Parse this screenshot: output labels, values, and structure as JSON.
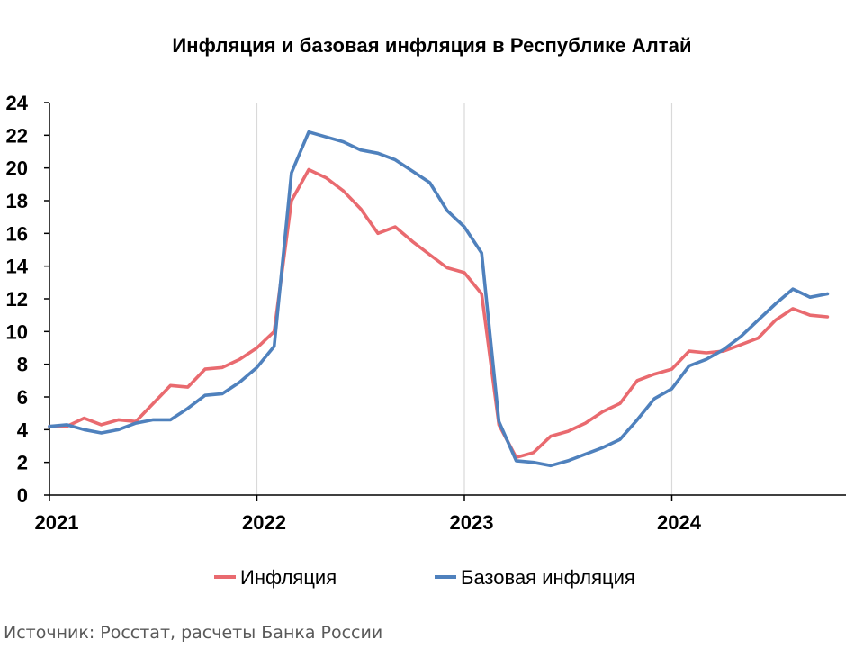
{
  "chart_data": {
    "type": "line",
    "title": "Инфляция и базовая инфляция в Республике Алтай",
    "xlabel": "",
    "ylabel": "",
    "ylim": [
      0,
      24
    ],
    "yticks": [
      0,
      2,
      4,
      6,
      8,
      10,
      12,
      14,
      16,
      18,
      20,
      22,
      24
    ],
    "xlim": [
      "2021-01",
      "2024-12"
    ],
    "x_tick_labels": [
      "2021",
      "2022",
      "2023",
      "2024"
    ],
    "grid": "vertical",
    "legend_position": "bottom",
    "x": [
      "2021-01",
      "2021-02",
      "2021-03",
      "2021-04",
      "2021-05",
      "2021-06",
      "2021-07",
      "2021-08",
      "2021-09",
      "2021-10",
      "2021-11",
      "2021-12",
      "2022-01",
      "2022-02",
      "2022-03",
      "2022-04",
      "2022-05",
      "2022-06",
      "2022-07",
      "2022-08",
      "2022-09",
      "2022-10",
      "2022-11",
      "2022-12",
      "2023-01",
      "2023-02",
      "2023-03",
      "2023-04",
      "2023-05",
      "2023-06",
      "2023-07",
      "2023-08",
      "2023-09",
      "2023-10",
      "2023-11",
      "2023-12",
      "2024-01",
      "2024-02",
      "2024-03",
      "2024-04",
      "2024-05",
      "2024-06",
      "2024-07",
      "2024-08",
      "2024-09",
      "2024-10"
    ],
    "series": [
      {
        "name": "Инфляция",
        "color": "#e96a6f",
        "values": [
          4.2,
          4.2,
          4.7,
          4.3,
          4.6,
          4.5,
          5.6,
          6.7,
          6.6,
          7.7,
          7.8,
          8.3,
          9.0,
          10.0,
          18.0,
          19.9,
          19.4,
          18.6,
          17.5,
          16.0,
          16.4,
          15.5,
          14.7,
          13.9,
          13.6,
          12.3,
          4.3,
          2.3,
          2.6,
          3.6,
          3.9,
          4.4,
          5.1,
          5.6,
          7.0,
          7.4,
          7.7,
          8.8,
          8.7,
          8.8,
          9.2,
          9.6,
          10.7,
          11.4,
          11.0,
          10.9
        ]
      },
      {
        "name": "Базовая инфляция",
        "color": "#4f81bd",
        "values": [
          4.2,
          4.3,
          4.0,
          3.8,
          4.0,
          4.4,
          4.6,
          4.6,
          5.3,
          6.1,
          6.2,
          6.9,
          7.8,
          9.1,
          19.7,
          22.2,
          21.9,
          21.6,
          21.1,
          20.9,
          20.5,
          19.8,
          19.1,
          17.4,
          16.4,
          14.8,
          4.5,
          2.1,
          2.0,
          1.8,
          2.1,
          2.5,
          2.9,
          3.4,
          4.6,
          5.9,
          6.5,
          7.9,
          8.3,
          8.9,
          9.7,
          10.7,
          11.7,
          12.6,
          12.1,
          12.3
        ]
      }
    ]
  },
  "source_note": "Источник: Росстат, расчеты Банка России"
}
